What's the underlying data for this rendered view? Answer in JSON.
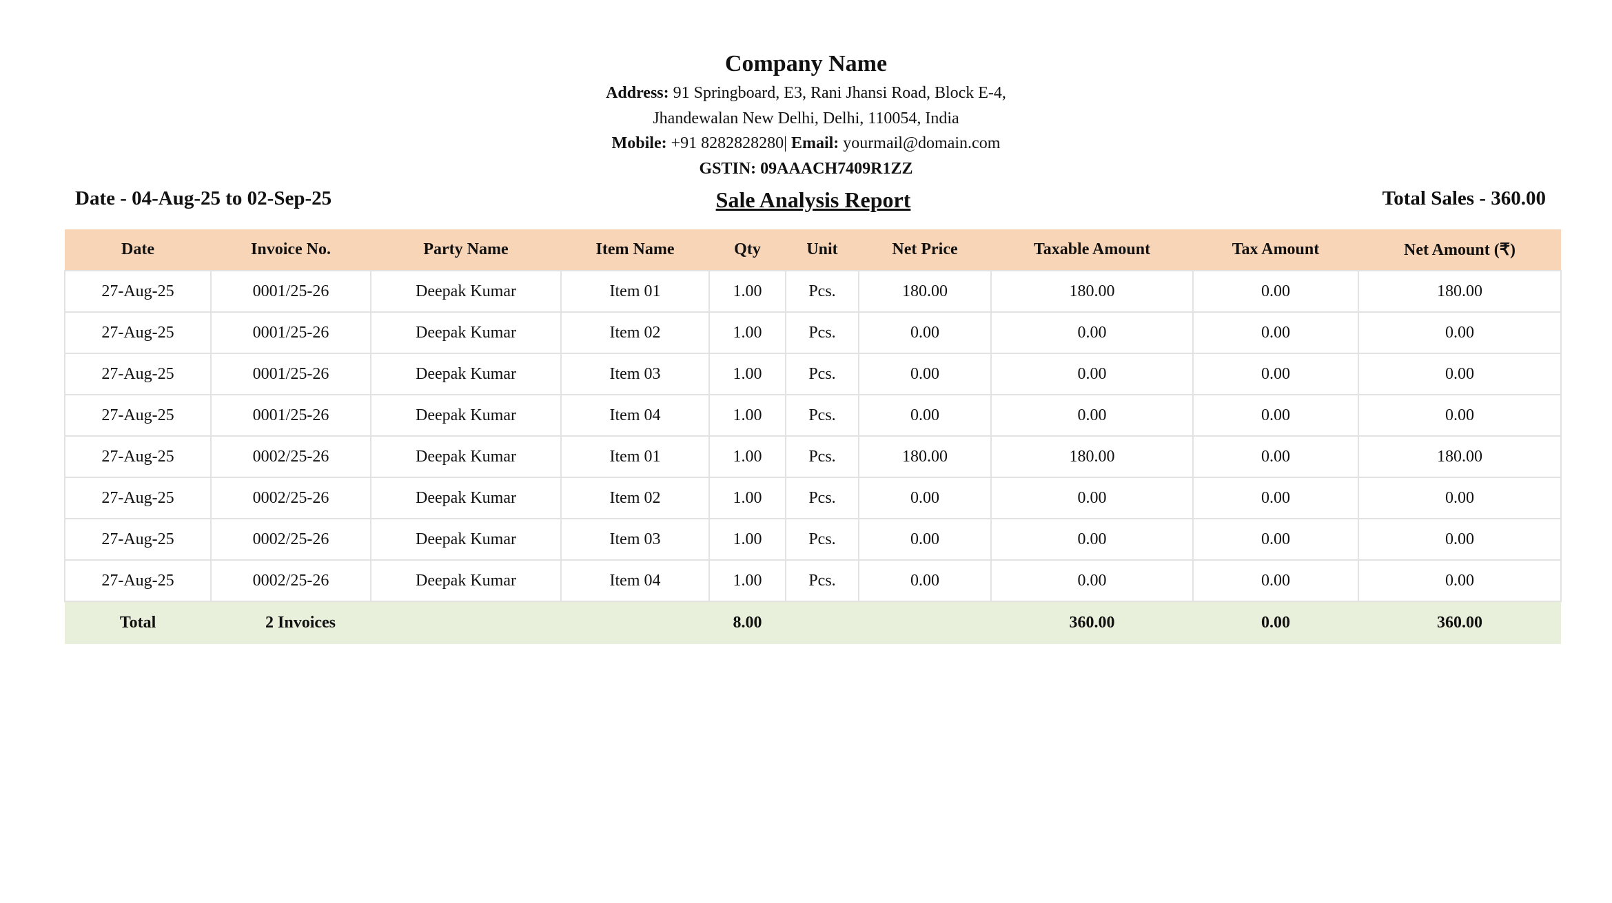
{
  "company": {
    "name": "Company Name",
    "address_label": "Address:",
    "address_line1": "91 Springboard, E3, Rani Jhansi Road, Block E-4,",
    "address_line2": "Jhandewalan New Delhi, Delhi, 110054, India",
    "mobile_label": "Mobile:",
    "mobile": "+91 8282828280",
    "separator": "|",
    "email_label": "Email:",
    "email": "yourmail@domain.com",
    "gstin": "GSTIN: 09AAACH7409R1ZZ"
  },
  "report": {
    "date_range": "Date - 04-Aug-25 to 02-Sep-25",
    "title": "Sale Analysis Report",
    "total_sales": "Total Sales - 360.00"
  },
  "colors": {
    "header_bg": "#f9d5b7",
    "total_bg": "#e8f0dc"
  },
  "table": {
    "columns": [
      "Date",
      "Invoice No.",
      "Party Name",
      "Item Name",
      "Qty",
      "Unit",
      "Net Price",
      "Taxable Amount",
      "Tax Amount",
      "Net Amount (₹)"
    ],
    "rows": [
      [
        "27-Aug-25",
        "0001/25-26",
        "Deepak Kumar",
        "Item 01",
        "1.00",
        "Pcs.",
        "180.00",
        "180.00",
        "0.00",
        "180.00"
      ],
      [
        "27-Aug-25",
        "0001/25-26",
        "Deepak Kumar",
        "Item 02",
        "1.00",
        "Pcs.",
        "0.00",
        "0.00",
        "0.00",
        "0.00"
      ],
      [
        "27-Aug-25",
        "0001/25-26",
        "Deepak Kumar",
        "Item 03",
        "1.00",
        "Pcs.",
        "0.00",
        "0.00",
        "0.00",
        "0.00"
      ],
      [
        "27-Aug-25",
        "0001/25-26",
        "Deepak Kumar",
        "Item 04",
        "1.00",
        "Pcs.",
        "0.00",
        "0.00",
        "0.00",
        "0.00"
      ],
      [
        "27-Aug-25",
        "0002/25-26",
        "Deepak Kumar",
        "Item 01",
        "1.00",
        "Pcs.",
        "180.00",
        "180.00",
        "0.00",
        "180.00"
      ],
      [
        "27-Aug-25",
        "0002/25-26",
        "Deepak Kumar",
        "Item 02",
        "1.00",
        "Pcs.",
        "0.00",
        "0.00",
        "0.00",
        "0.00"
      ],
      [
        "27-Aug-25",
        "0002/25-26",
        "Deepak Kumar",
        "Item 03",
        "1.00",
        "Pcs.",
        "0.00",
        "0.00",
        "0.00",
        "0.00"
      ],
      [
        "27-Aug-25",
        "0002/25-26",
        "Deepak Kumar",
        "Item 04",
        "1.00",
        "Pcs.",
        "0.00",
        "0.00",
        "0.00",
        "0.00"
      ]
    ],
    "totals": [
      "Total",
      "2 Invoices",
      "",
      "",
      "8.00",
      "",
      "",
      "360.00",
      "0.00",
      "360.00"
    ]
  }
}
